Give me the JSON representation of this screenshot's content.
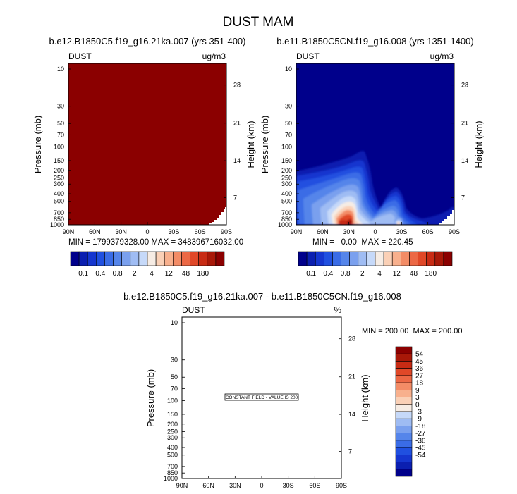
{
  "figure_title": "DUST MAM",
  "colors": {
    "panel1_fill": "#8b0000",
    "panel2_background": "#00008b",
    "frame": "#000000"
  },
  "colorbar": {
    "colors": [
      "#00008b",
      "#0b1fb0",
      "#1536cf",
      "#2050e0",
      "#3a6ce6",
      "#5585ea",
      "#7aa0ee",
      "#9fbcf3",
      "#c6d9f9",
      "#f6ece4",
      "#fad0b6",
      "#f8b08d",
      "#f38c66",
      "#ec6845",
      "#e04828",
      "#c82b14",
      "#a81808",
      "#8b0000"
    ],
    "labels": [
      "0.1",
      "0.4",
      "0.8",
      "2",
      "4",
      "12",
      "48",
      "180"
    ]
  },
  "diff_colorbar": {
    "labels": [
      "54",
      "45",
      "36",
      "27",
      "18",
      "9",
      "3",
      "0",
      "-3",
      "-9",
      "-18",
      "-27",
      "-36",
      "-45",
      "-54"
    ]
  },
  "diff_panel": {
    "minmax": "MIN = 200.00  MAX = 200.00",
    "constant_note": "CONSTANT FIELD - VALUE IS 200"
  },
  "chart_data": [
    {
      "type": "heatmap",
      "title": "b.e12.B1850C5.f19_g16.21ka.007 (yrs 351-400)",
      "left_label": "DUST",
      "units": "ug/m3",
      "xlabel": "",
      "ylabel": "Pressure (mb)",
      "ylabel_right": "Height (km)",
      "x_ticks": [
        "90N",
        "60N",
        "30N",
        "0",
        "30S",
        "60S",
        "90S"
      ],
      "y_ticks": [
        "10",
        "30",
        "50",
        "70",
        "100",
        "150",
        "200",
        "250",
        "300",
        "400",
        "500",
        "700",
        "850",
        "1000"
      ],
      "y2_ticks": [
        "28",
        "21",
        "14",
        "7"
      ],
      "minmax": "MIN = 1799379328.00  MAX = 348396716032.00",
      "description_fill": "uniform top color level (>180) with blank region near bottom-right",
      "min": 1799379328.0,
      "max": 348396716032.0
    },
    {
      "type": "heatmap",
      "title": "b.e11.B1850C5CN.f19_g16.008 (yrs 1351-1400)",
      "left_label": "DUST",
      "units": "ug/m3",
      "xlabel": "",
      "ylabel": "Pressure (mb)",
      "ylabel_right": "Height (km)",
      "x_ticks": [
        "90N",
        "60N",
        "30N",
        "0",
        "30S",
        "60S",
        "90S"
      ],
      "y_ticks": [
        "10",
        "30",
        "50",
        "70",
        "100",
        "150",
        "200",
        "250",
        "300",
        "400",
        "500",
        "700",
        "850",
        "1000"
      ],
      "y2_ticks": [
        "28",
        "21",
        "14",
        "7"
      ],
      "minmax": "MIN =   0.00  MAX = 220.45",
      "min": 0.0,
      "max": 220.45
    },
    {
      "type": "heatmap",
      "title": "b.e12.B1850C5.f19_g16.21ka.007 - b.e11.B1850C5CN.f19_g16.008",
      "left_label": "DUST",
      "units": "%",
      "xlabel": "",
      "ylabel": "Pressure (mb)",
      "ylabel_right": "Height (km)",
      "x_ticks": [
        "90N",
        "60N",
        "30N",
        "0",
        "30S",
        "60S",
        "90S"
      ],
      "y_ticks": [
        "10",
        "30",
        "50",
        "70",
        "100",
        "150",
        "200",
        "250",
        "300",
        "400",
        "500",
        "700",
        "850",
        "1000"
      ],
      "y2_ticks": [
        "28",
        "21",
        "14",
        "7"
      ],
      "min": 200.0,
      "max": 200.0
    }
  ]
}
